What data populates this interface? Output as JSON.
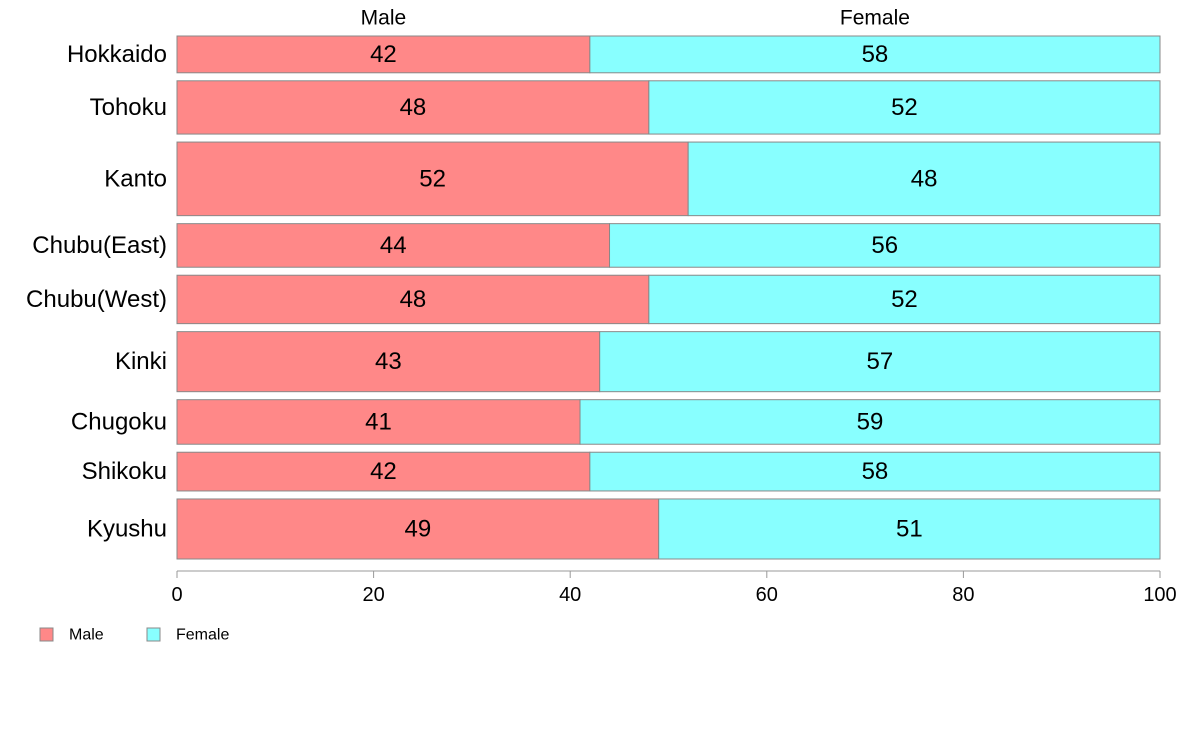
{
  "chart_data": {
    "type": "bar",
    "orientation": "horizontal",
    "stacked": true,
    "categories": [
      "Hokkaido",
      "Tohoku",
      "Kanto",
      "Chubu(East)",
      "Chubu(West)",
      "Kinki",
      "Chugoku",
      "Shikoku",
      "Kyushu"
    ],
    "series": [
      {
        "name": "Male",
        "values": [
          42,
          48,
          52,
          44,
          48,
          43,
          41,
          42,
          49
        ],
        "color": "#ff8888"
      },
      {
        "name": "Female",
        "values": [
          58,
          52,
          48,
          56,
          52,
          57,
          59,
          58,
          51
        ],
        "color": "#88ffff"
      }
    ],
    "row_weights": [
      38,
      55,
      76,
      45,
      50,
      62,
      46,
      40,
      62
    ],
    "xticks": [
      "0",
      "20",
      "40",
      "60",
      "80",
      "100"
    ],
    "xlim": [
      0,
      100
    ],
    "title": "",
    "xlabel": "",
    "ylabel": "",
    "grid": false,
    "legend_position": "bottom-left"
  }
}
